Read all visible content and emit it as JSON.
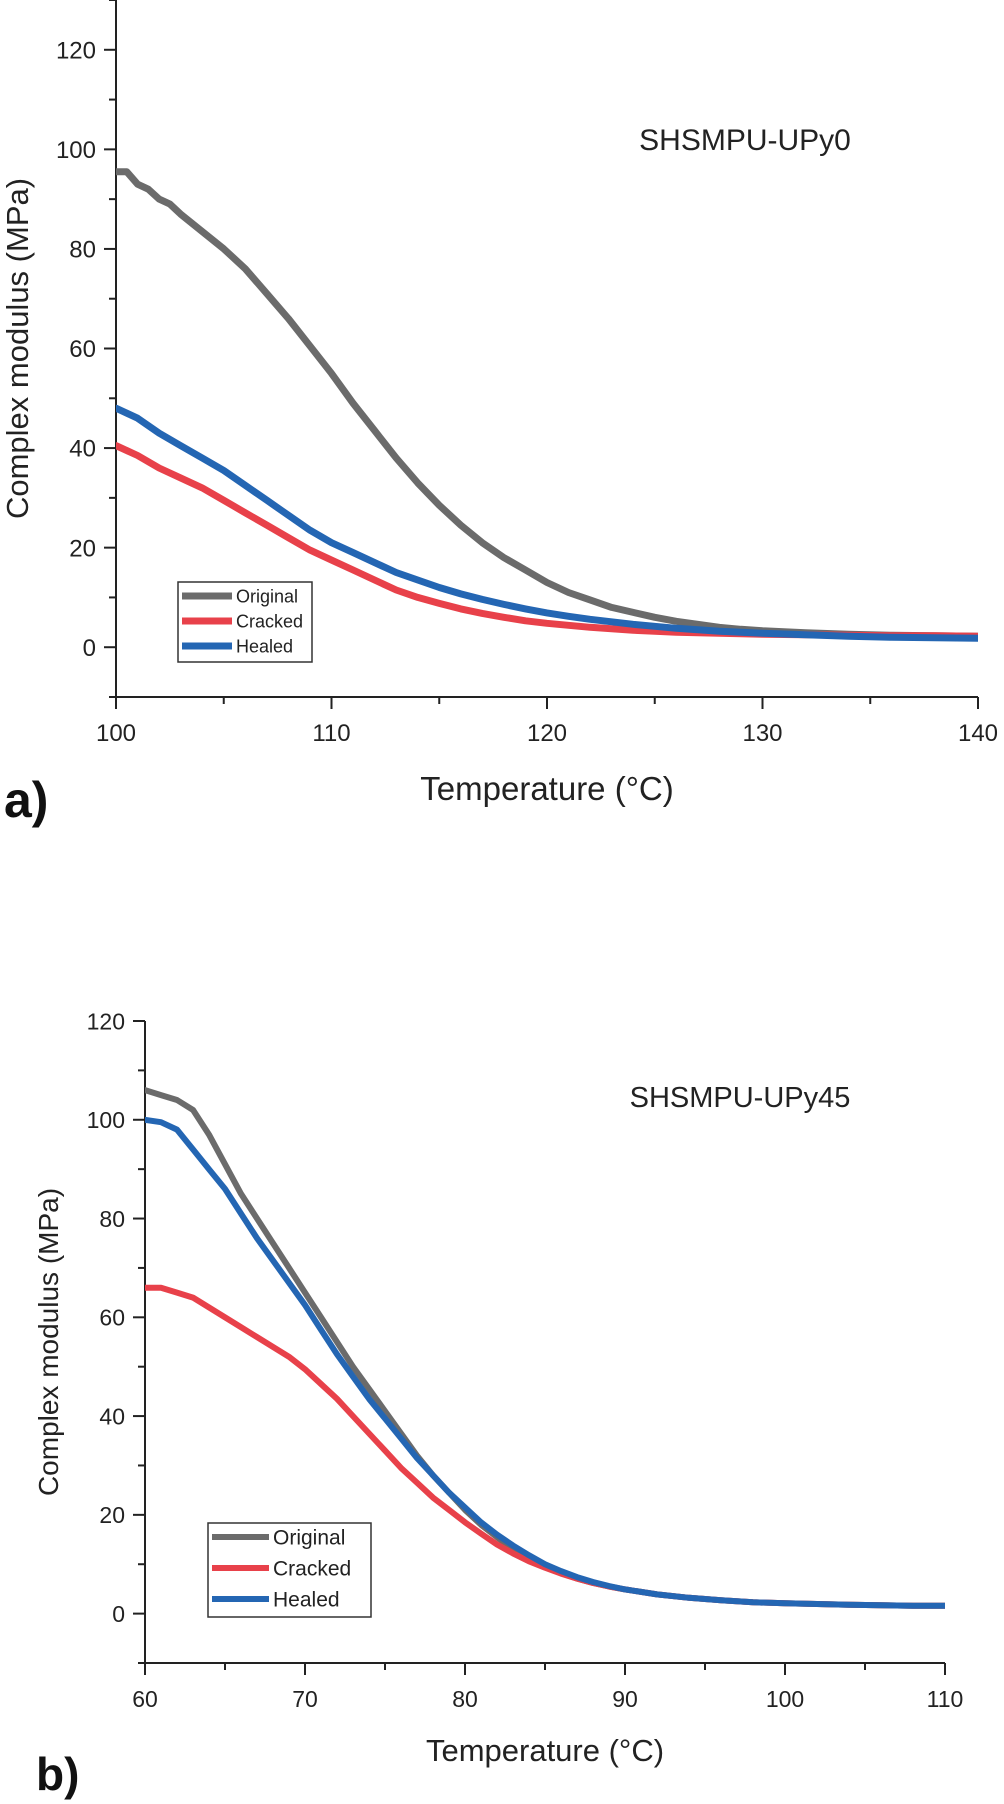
{
  "colors": {
    "Original": "#6b6b6b",
    "Cracked": "#e8414a",
    "Healed": "#2466b3",
    "axis": "#222222"
  },
  "chart_data": [
    {
      "panel": "a)",
      "type": "line",
      "annotation": "SHSMPU-UPy0",
      "xlabel": "Temperature (°C)",
      "ylabel": "Complex modulus (MPa)",
      "xlim": [
        100,
        140
      ],
      "ylim": [
        -10,
        130
      ],
      "xticks": [
        100,
        110,
        120,
        130,
        140
      ],
      "yticks": [
        0,
        20,
        40,
        60,
        80,
        100,
        120
      ],
      "legend_position": "bottom-left",
      "series": [
        {
          "name": "Original",
          "x": [
            100,
            100.5,
            101,
            101.5,
            102,
            102.5,
            103,
            104,
            105,
            106,
            107,
            108,
            109,
            110,
            111,
            112,
            113,
            114,
            115,
            116,
            117,
            118,
            119,
            120,
            121,
            122,
            123,
            124,
            125,
            126,
            127,
            128,
            129,
            130,
            132,
            134,
            136,
            138,
            140
          ],
          "y": [
            95.5,
            95.5,
            93,
            92,
            90,
            89,
            87,
            83.5,
            80,
            76,
            71,
            66,
            60.5,
            55,
            49,
            43.5,
            38,
            33,
            28.5,
            24.5,
            21,
            18,
            15.5,
            13,
            11,
            9.5,
            8,
            7,
            6,
            5.2,
            4.6,
            4.0,
            3.6,
            3.3,
            2.9,
            2.6,
            2.4,
            2.3,
            2.2
          ]
        },
        {
          "name": "Cracked",
          "x": [
            100,
            101,
            102,
            103,
            104,
            105,
            106,
            107,
            108,
            109,
            110,
            111,
            112,
            113,
            114,
            115,
            116,
            117,
            118,
            119,
            120,
            121,
            122,
            123,
            124,
            125,
            126,
            127,
            128,
            129,
            130,
            132,
            134,
            136,
            138,
            140
          ],
          "y": [
            40.5,
            38.5,
            36,
            34,
            32,
            29.5,
            27,
            24.5,
            22,
            19.5,
            17.5,
            15.5,
            13.5,
            11.5,
            10,
            8.8,
            7.7,
            6.8,
            6,
            5.3,
            4.8,
            4.4,
            4,
            3.7,
            3.4,
            3.2,
            3.0,
            2.9,
            2.8,
            2.7,
            2.6,
            2.5,
            2.4,
            2.3,
            2.3,
            2.2
          ]
        },
        {
          "name": "Healed",
          "x": [
            100,
            101,
            102,
            103,
            104,
            105,
            106,
            107,
            108,
            109,
            110,
            111,
            112,
            113,
            114,
            115,
            116,
            117,
            118,
            119,
            120,
            121,
            122,
            123,
            124,
            125,
            126,
            127,
            128,
            129,
            130,
            132,
            134,
            136,
            138,
            140
          ],
          "y": [
            48,
            46,
            43,
            40.5,
            38,
            35.5,
            32.5,
            29.5,
            26.5,
            23.5,
            21,
            19,
            17,
            15,
            13.5,
            12,
            10.7,
            9.6,
            8.6,
            7.7,
            6.9,
            6.2,
            5.6,
            5.1,
            4.6,
            4.2,
            3.8,
            3.5,
            3.2,
            3.0,
            2.8,
            2.5,
            2.2,
            2.0,
            1.9,
            1.8
          ]
        }
      ]
    },
    {
      "panel": "b)",
      "type": "line",
      "annotation": "SHSMPU-UPy45",
      "xlabel": "Temperature (°C)",
      "ylabel": "Complex modulus (MPa)",
      "xlim": [
        60,
        110
      ],
      "ylim": [
        -10,
        120
      ],
      "xticks": [
        60,
        70,
        80,
        90,
        100,
        110
      ],
      "yticks": [
        0,
        20,
        40,
        60,
        80,
        100,
        120
      ],
      "legend_position": "bottom-left",
      "series": [
        {
          "name": "Original",
          "x": [
            60,
            61,
            62,
            63,
            64,
            65,
            66,
            67,
            68,
            69,
            70,
            71,
            72,
            73,
            74,
            75,
            76,
            77,
            78,
            79,
            80,
            81,
            82,
            83,
            84,
            85,
            86,
            87,
            88,
            89,
            90,
            92,
            94,
            96,
            98,
            100,
            104,
            108,
            110
          ],
          "y": [
            106,
            105,
            104,
            102,
            97,
            91,
            85,
            80,
            75,
            70,
            65,
            60,
            55,
            50,
            45.5,
            41,
            36.5,
            32,
            28,
            24.5,
            21,
            18,
            15.5,
            13,
            11,
            9.5,
            8.2,
            7.1,
            6.2,
            5.5,
            4.9,
            3.9,
            3.2,
            2.7,
            2.3,
            2.1,
            1.8,
            1.6,
            1.6
          ]
        },
        {
          "name": "Cracked",
          "x": [
            60,
            61,
            62,
            63,
            64,
            65,
            66,
            67,
            68,
            69,
            70,
            71,
            72,
            73,
            74,
            75,
            76,
            77,
            78,
            79,
            80,
            81,
            82,
            83,
            84,
            85,
            86,
            87,
            88,
            89,
            90,
            92,
            94,
            96,
            98,
            100,
            104,
            108,
            110
          ],
          "y": [
            66,
            66,
            65,
            64,
            62,
            60,
            58,
            56,
            54,
            52,
            49.5,
            46.5,
            43.5,
            40,
            36.5,
            33,
            29.5,
            26.5,
            23.5,
            21,
            18.5,
            16.2,
            14,
            12.2,
            10.6,
            9.3,
            8.1,
            7.1,
            6.2,
            5.5,
            4.9,
            3.9,
            3.2,
            2.7,
            2.3,
            2.1,
            1.8,
            1.6,
            1.6
          ]
        },
        {
          "name": "Healed",
          "x": [
            60,
            61,
            62,
            63,
            64,
            65,
            66,
            67,
            68,
            69,
            70,
            71,
            72,
            73,
            74,
            75,
            76,
            77,
            78,
            79,
            80,
            81,
            82,
            83,
            84,
            85,
            86,
            87,
            88,
            89,
            90,
            92,
            94,
            96,
            98,
            100,
            104,
            108,
            110
          ],
          "y": [
            100,
            99.5,
            98,
            94,
            90,
            86,
            81,
            76,
            71.5,
            67,
            62.5,
            57.5,
            52.5,
            48,
            43.5,
            39.5,
            35.5,
            31.5,
            28,
            24.5,
            21.5,
            18.5,
            16,
            13.8,
            11.8,
            10,
            8.6,
            7.4,
            6.4,
            5.6,
            4.9,
            3.9,
            3.2,
            2.7,
            2.3,
            2.1,
            1.8,
            1.6,
            1.6
          ]
        }
      ]
    }
  ]
}
